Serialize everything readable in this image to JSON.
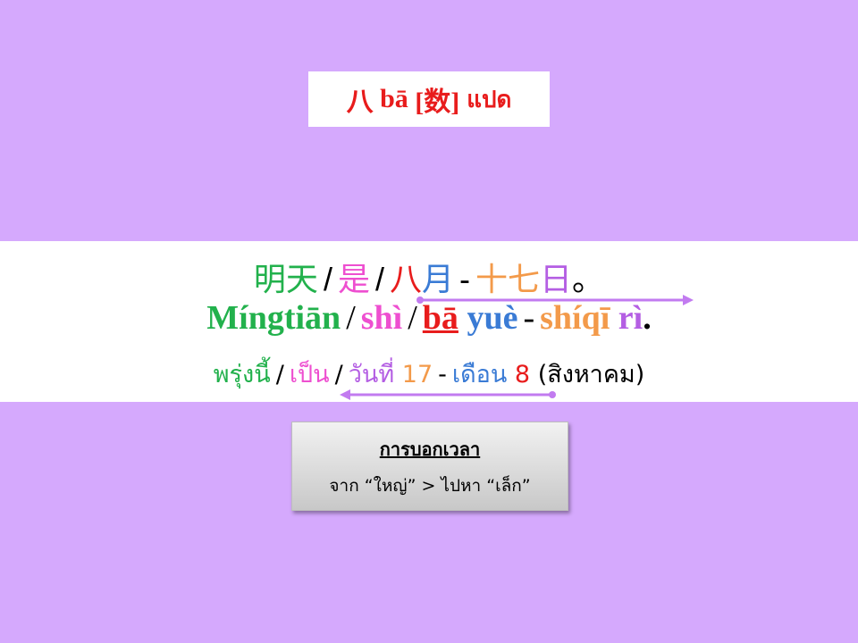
{
  "title": {
    "chinese": "八",
    "pinyin": "bā",
    "pos": "[数]",
    "thai": "แปด"
  },
  "sentence": {
    "hanzi": [
      "明天",
      "/",
      "是",
      "/",
      "八",
      "月",
      "-",
      "十七",
      "日",
      "。"
    ],
    "pinyin": [
      "Míngtiān",
      "/",
      "shì",
      "/",
      "bā",
      "yuè",
      "-",
      "shíqī",
      "rì",
      "."
    ],
    "thai": [
      "พรุ่งนี้",
      "/",
      "เป็น",
      "/",
      "วันที่",
      "17",
      "-",
      "เดือน",
      "8",
      "(สิงหาคม)"
    ]
  },
  "note": {
    "heading": "การบอกเวลา",
    "text": "จาก “ใหญ่” > ไปหา “เล็ก”"
  },
  "colors": {
    "background": "#d5a9fd",
    "green": "#22b14c",
    "pink": "#ee4fd0",
    "red": "#e81c1c",
    "blue": "#3a7bd5",
    "orange": "#f39a4a",
    "teal": "#00aab5",
    "violet": "#b45ee3",
    "arrow": "#c27bf0"
  }
}
